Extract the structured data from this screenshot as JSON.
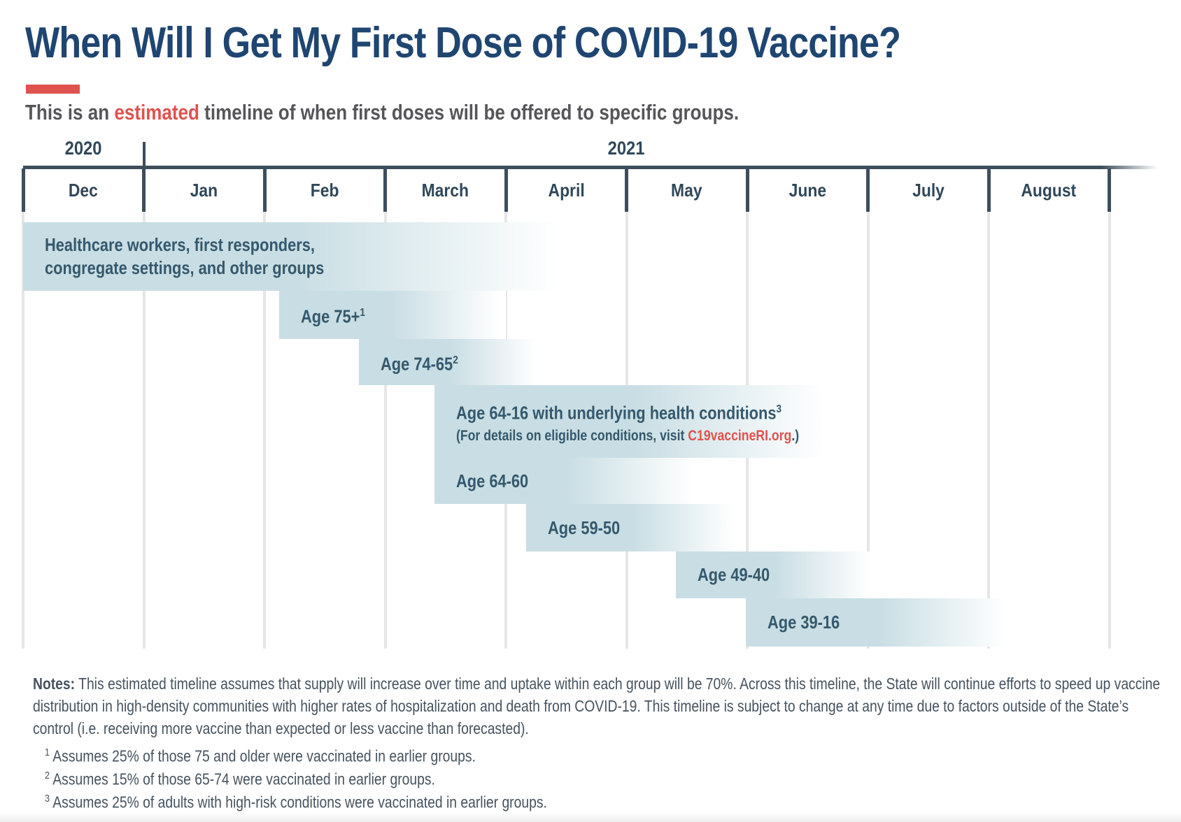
{
  "page": {
    "title": "When Will I Get My First Dose of COVID-19 Vaccine?",
    "subtitle": {
      "prefix": "This is an ",
      "highlight": "estimated",
      "suffix": " timeline of when first doses will be offered to specific groups."
    }
  },
  "chart_data": {
    "type": "bar",
    "variant": "gantt-timeline",
    "title": "When Will I Get My First Dose of COVID-19 Vaccine?",
    "x_axis": {
      "unit": "month",
      "months": [
        "Dec",
        "Jan",
        "Feb",
        "March",
        "April",
        "May",
        "June",
        "July",
        "August"
      ],
      "year_groups": [
        {
          "label": "2020",
          "span": [
            0,
            1
          ]
        },
        {
          "label": "2021",
          "span": [
            1,
            9
          ]
        }
      ],
      "grid": "vertical-month-lines"
    },
    "bars": [
      {
        "label": "Healthcare workers, first responders,",
        "label2": "congregate settings, and other groups",
        "sup": "",
        "start": 0.0,
        "end": 4.57
      },
      {
        "label": "Age 75+",
        "sup": "1",
        "start": 2.12,
        "end": 4.0
      },
      {
        "label": "Age 74-65",
        "sup": "2",
        "start": 2.78,
        "end": 4.3
      },
      {
        "label": "Age 64-16 with underlying health conditions",
        "sup": "3",
        "start": 3.41,
        "end": 6.74,
        "sublabel": {
          "prefix": "(For details on eligible conditions, visit ",
          "link": "C19vaccineRI.org",
          "suffix": ".)"
        }
      },
      {
        "label": "Age 64-60",
        "sup": "",
        "start": 3.41,
        "end": 5.61
      },
      {
        "label": "Age 59-50",
        "sup": "",
        "start": 4.17,
        "end": 5.95
      },
      {
        "label": "Age 49-40",
        "sup": "",
        "start": 5.41,
        "end": 7.06
      },
      {
        "label": "Age 39-16",
        "sup": "",
        "start": 5.99,
        "end": 8.21
      }
    ],
    "colors": {
      "bar_fill": "#C9DEE4",
      "bar_text": "#35586C",
      "axis_line": "#3D4E5C",
      "gridline": "#E6E6E6",
      "accent_red": "#E0524E",
      "title_navy": "#1F4571",
      "subtitle_gray": "#55565A",
      "notes_text": "#45535F"
    },
    "legend": "none"
  },
  "notes": {
    "label": "Notes:",
    "body": "This estimated timeline assumes that supply will increase over time and uptake within each group will be 70%. Across this timeline, the State will continue efforts to speed up vaccine distribution in high-density communities with higher rates of hospitalization and death from COVID-19. This timeline is subject to change at any time due to factors outside of the State’s control (i.e. receiving more vaccine than expected or less vaccine than forecasted).",
    "footnotes": [
      {
        "marker": "1",
        "text": "Assumes 25% of those 75 and older were vaccinated in earlier groups."
      },
      {
        "marker": "2",
        "text": "Assumes 15% of those 65-74 were vaccinated in earlier groups."
      },
      {
        "marker": "3",
        "text": "Assumes 25% of adults with high-risk conditions were vaccinated in earlier groups."
      }
    ]
  }
}
